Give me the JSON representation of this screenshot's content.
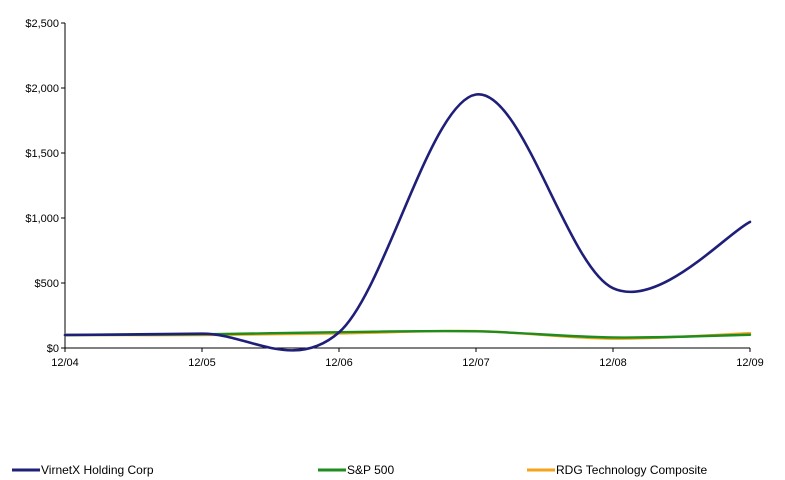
{
  "chart_data": {
    "type": "line",
    "title": "",
    "xlabel": "",
    "ylabel": "",
    "categories": [
      "12/04",
      "12/05",
      "12/06",
      "12/07",
      "12/08",
      "12/09"
    ],
    "ylim": [
      0,
      2500
    ],
    "yticks": [
      0,
      500,
      1000,
      1500,
      2000,
      2500
    ],
    "ytick_labels": [
      "$0",
      "$500",
      "$1,000",
      "$1,500",
      "$2,000",
      "$2,500"
    ],
    "grid": false,
    "legend_position": "bottom",
    "series": [
      {
        "name": "VirnetX Holding Corp",
        "color": "#1f1f7a",
        "values": [
          100,
          110,
          120,
          1950,
          460,
          970
        ]
      },
      {
        "name": "S&P 500",
        "color": "#1e8c1e",
        "values": [
          100,
          105,
          122,
          128,
          81,
          102
        ]
      },
      {
        "name": "RDG Technology Composite",
        "color": "#f5a31a",
        "values": [
          100,
          100,
          112,
          130,
          72,
          114
        ]
      }
    ]
  }
}
